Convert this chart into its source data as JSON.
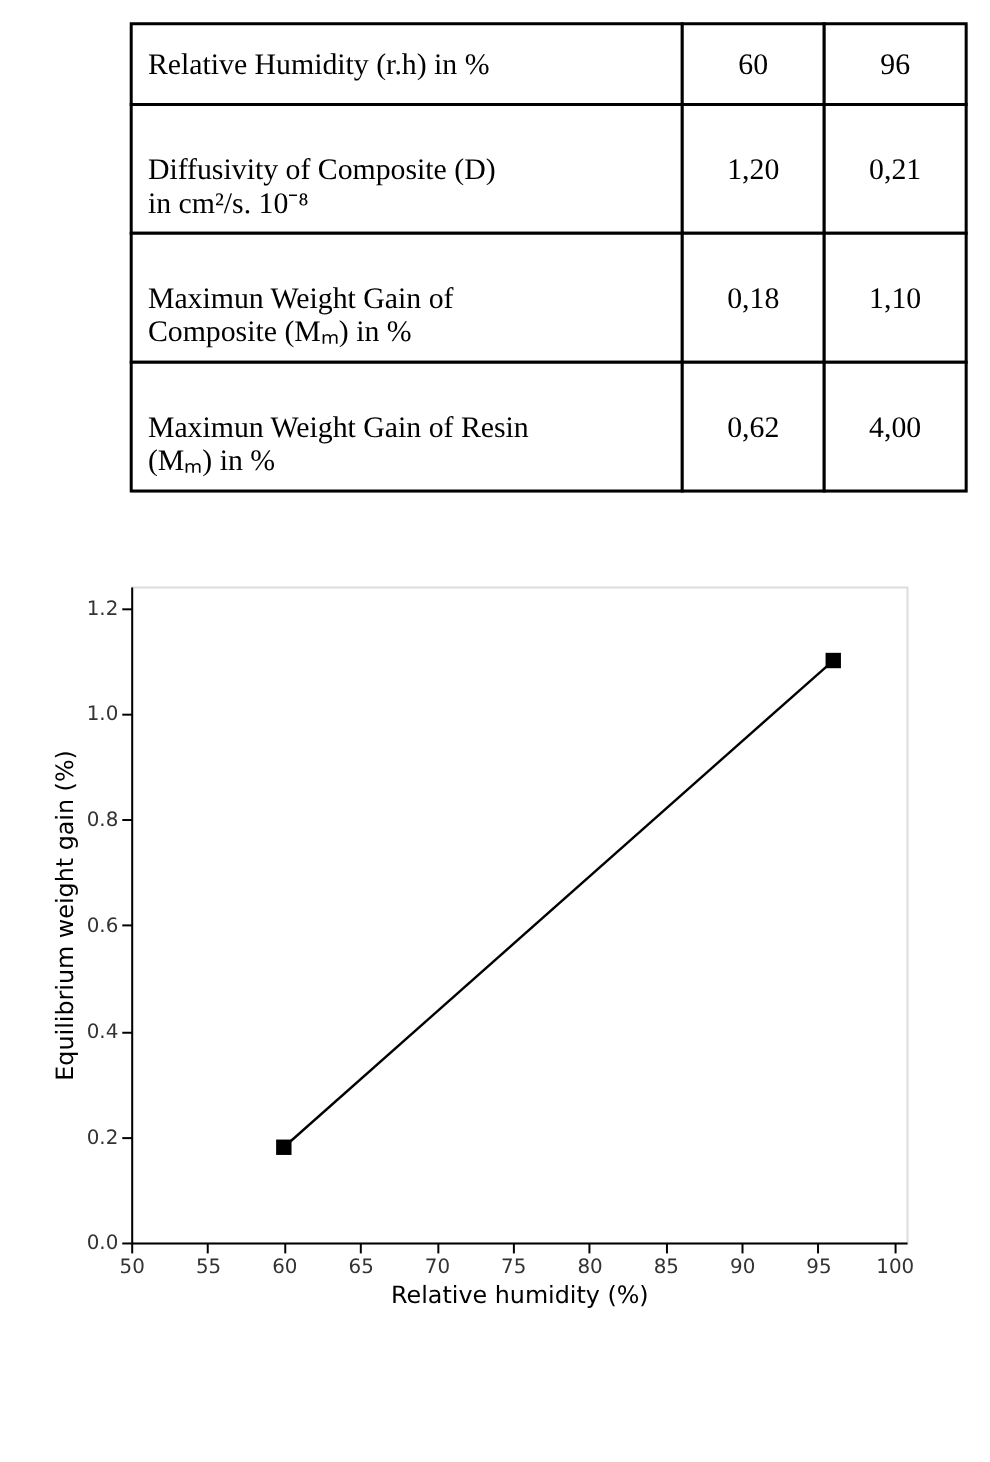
{
  "chart_data": [
    {
      "type": "other",
      "annotations": [
        "Relative Humidity (r.h) in %",
        "60",
        "96",
        "Diffusivity of Composite (D) in cm²/s. 10⁻⁸",
        "1,20",
        "0,21",
        "Maximun Weight Gain of Composite (Mₘ) in %",
        "0,18",
        "1,10",
        "Maximun Weight Gain of Resin (Mₘ) in %",
        "0,62",
        "4,00"
      ]
    },
    {
      "type": "line",
      "xlabel": "Relative humidity (%)",
      "ylabel": "Equilibrium weight gain (%)",
      "x": [
        60,
        96
      ],
      "series": [
        {
          "color": "#000000",
          "values": [
            0.18,
            1.1
          ]
        }
      ],
      "marker": "square",
      "line_style": "solid",
      "xlim": [
        50,
        100.8
      ],
      "xticks": [
        50,
        55,
        60,
        65,
        70,
        75,
        80,
        85,
        90,
        95,
        100
      ],
      "ylim": [
        0,
        1.24
      ],
      "yticks": [
        {
          "value": 0,
          "label": "0.0"
        },
        0.2,
        0.4,
        0.6,
        0.8,
        {
          "value": 1,
          "label": "1.0"
        },
        1.2
      ],
      "grid": false
    }
  ]
}
